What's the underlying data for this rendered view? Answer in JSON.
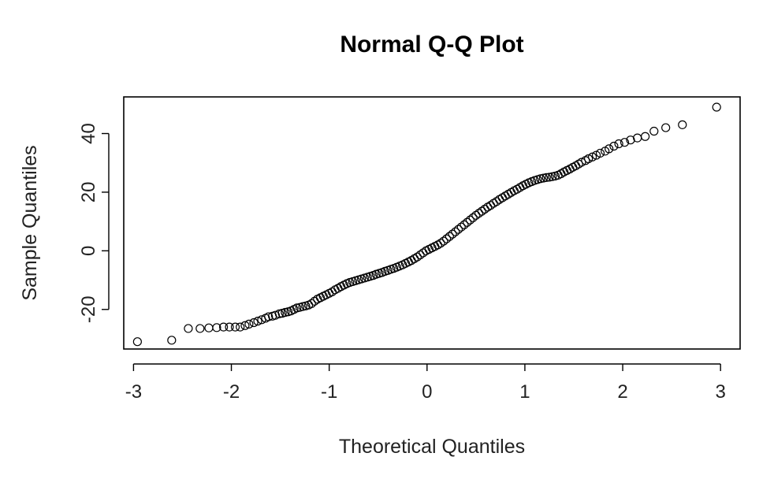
{
  "chart_data": {
    "type": "scatter",
    "title": "Normal Q-Q Plot",
    "xlabel": "Theoretical Quantiles",
    "ylabel": "Sample Quantiles",
    "xticks": [
      "-3",
      "-2",
      "-1",
      "0",
      "1",
      "2",
      "3"
    ],
    "yticks": [
      "-20",
      "0",
      "20",
      "40"
    ],
    "xlim": [
      -3.1,
      3.2
    ],
    "ylim": [
      -33.5,
      52.5
    ],
    "grid": false,
    "legend": "none",
    "marker": "open-circle",
    "points": [
      [
        -2.96,
        -31.0
      ],
      [
        -2.61,
        -30.5
      ],
      [
        -2.44,
        -26.5
      ],
      [
        -2.32,
        -26.5
      ],
      [
        -2.23,
        -26.3
      ],
      [
        -2.15,
        -26.2
      ],
      [
        -2.08,
        -26.0
      ],
      [
        -2.02,
        -26.0
      ],
      [
        -1.96,
        -26.0
      ],
      [
        -1.91,
        -26.0
      ],
      [
        -1.86,
        -25.5
      ],
      [
        -1.82,
        -25.0
      ],
      [
        -1.77,
        -24.5
      ],
      [
        -1.73,
        -24.0
      ],
      [
        -1.69,
        -23.5
      ],
      [
        -1.65,
        -23.0
      ],
      [
        -1.62,
        -22.5
      ],
      [
        -1.58,
        -22.3
      ],
      [
        -1.55,
        -22.0
      ],
      [
        -1.51,
        -21.5
      ],
      [
        -1.48,
        -21.3
      ],
      [
        -1.45,
        -21.0
      ],
      [
        -1.42,
        -20.8
      ],
      [
        -1.39,
        -20.5
      ],
      [
        -1.36,
        -20.0
      ],
      [
        -1.33,
        -19.5
      ],
      [
        -1.3,
        -19.3
      ],
      [
        -1.27,
        -19.0
      ],
      [
        -1.24,
        -18.8
      ],
      [
        -1.21,
        -18.5
      ],
      [
        -1.18,
        -18.0
      ],
      [
        -1.15,
        -17.2
      ],
      [
        -1.12,
        -16.5
      ],
      [
        -1.09,
        -16.0
      ],
      [
        -1.06,
        -15.5
      ],
      [
        -1.03,
        -15.0
      ],
      [
        -1.0,
        -14.5
      ],
      [
        -0.97,
        -14.0
      ],
      [
        -0.94,
        -13.3
      ],
      [
        -0.91,
        -12.8
      ],
      [
        -0.88,
        -12.2
      ],
      [
        -0.85,
        -11.7
      ],
      [
        -0.82,
        -11.2
      ],
      [
        -0.79,
        -10.8
      ],
      [
        -0.76,
        -10.5
      ],
      [
        -0.73,
        -10.2
      ],
      [
        -0.7,
        -9.9
      ],
      [
        -0.67,
        -9.6
      ],
      [
        -0.64,
        -9.3
      ],
      [
        -0.61,
        -9.0
      ],
      [
        -0.58,
        -8.7
      ],
      [
        -0.55,
        -8.4
      ],
      [
        -0.52,
        -8.0
      ],
      [
        -0.49,
        -7.7
      ],
      [
        -0.46,
        -7.4
      ],
      [
        -0.43,
        -7.0
      ],
      [
        -0.4,
        -6.7
      ],
      [
        -0.37,
        -6.3
      ],
      [
        -0.34,
        -6.0
      ],
      [
        -0.31,
        -5.6
      ],
      [
        -0.28,
        -5.2
      ],
      [
        -0.25,
        -4.8
      ],
      [
        -0.22,
        -4.3
      ],
      [
        -0.19,
        -3.8
      ],
      [
        -0.16,
        -3.3
      ],
      [
        -0.13,
        -2.7
      ],
      [
        -0.1,
        -2.1
      ],
      [
        -0.07,
        -1.4
      ],
      [
        -0.04,
        -0.7
      ],
      [
        -0.01,
        0.0
      ],
      [
        0.02,
        0.5
      ],
      [
        0.05,
        1.0
      ],
      [
        0.08,
        1.5
      ],
      [
        0.11,
        2.0
      ],
      [
        0.14,
        2.6
      ],
      [
        0.17,
        3.3
      ],
      [
        0.2,
        4.1
      ],
      [
        0.23,
        4.9
      ],
      [
        0.26,
        5.7
      ],
      [
        0.29,
        6.5
      ],
      [
        0.32,
        7.3
      ],
      [
        0.35,
        8.1
      ],
      [
        0.38,
        8.9
      ],
      [
        0.41,
        9.7
      ],
      [
        0.44,
        10.5
      ],
      [
        0.47,
        11.3
      ],
      [
        0.5,
        12.1
      ],
      [
        0.53,
        12.8
      ],
      [
        0.56,
        13.5
      ],
      [
        0.59,
        14.2
      ],
      [
        0.62,
        14.9
      ],
      [
        0.65,
        15.5
      ],
      [
        0.68,
        16.2
      ],
      [
        0.71,
        16.8
      ],
      [
        0.74,
        17.5
      ],
      [
        0.77,
        18.1
      ],
      [
        0.8,
        18.7
      ],
      [
        0.83,
        19.3
      ],
      [
        0.86,
        19.9
      ],
      [
        0.89,
        20.5
      ],
      [
        0.92,
        21.0
      ],
      [
        0.95,
        21.6
      ],
      [
        0.98,
        22.2
      ],
      [
        1.01,
        22.7
      ],
      [
        1.04,
        23.2
      ],
      [
        1.07,
        23.6
      ],
      [
        1.1,
        24.0
      ],
      [
        1.13,
        24.3
      ],
      [
        1.16,
        24.6
      ],
      [
        1.19,
        24.8
      ],
      [
        1.22,
        25.0
      ],
      [
        1.25,
        25.1
      ],
      [
        1.28,
        25.3
      ],
      [
        1.31,
        25.5
      ],
      [
        1.34,
        25.8
      ],
      [
        1.37,
        26.3
      ],
      [
        1.4,
        26.9
      ],
      [
        1.43,
        27.4
      ],
      [
        1.46,
        27.9
      ],
      [
        1.49,
        28.5
      ],
      [
        1.52,
        29.0
      ],
      [
        1.55,
        29.6
      ],
      [
        1.58,
        30.2
      ],
      [
        1.62,
        30.8
      ],
      [
        1.65,
        31.4
      ],
      [
        1.69,
        32.0
      ],
      [
        1.73,
        32.6
      ],
      [
        1.77,
        33.3
      ],
      [
        1.82,
        34.0
      ],
      [
        1.86,
        34.8
      ],
      [
        1.91,
        35.7
      ],
      [
        1.96,
        36.5
      ],
      [
        2.02,
        37.0
      ],
      [
        2.08,
        37.8
      ],
      [
        2.15,
        38.5
      ],
      [
        2.23,
        39.0
      ],
      [
        2.32,
        40.8
      ],
      [
        2.44,
        42.0
      ],
      [
        2.61,
        43.0
      ],
      [
        2.96,
        49.0
      ]
    ]
  }
}
